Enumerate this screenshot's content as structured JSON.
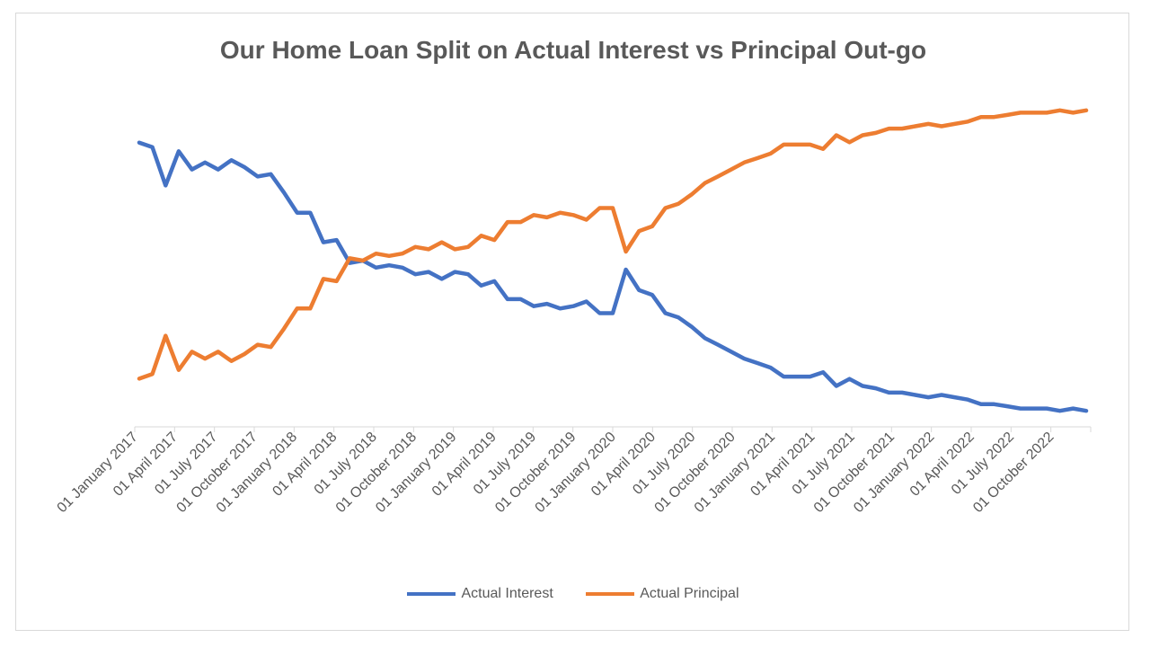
{
  "chart_data": {
    "type": "line",
    "title": "Our Home Loan Split on Actual Interest vs Principal Out-go",
    "xlabel": "",
    "ylabel": "",
    "x_tick_labels": [
      "01 January 2017",
      "01 April 2017",
      "01 July 2017",
      "01 October 2017",
      "01 January 2018",
      "01 April 2018",
      "01 July 2018",
      "01 October 2018",
      "01 January 2019",
      "01 April 2019",
      "01 July 2019",
      "01 October 2019",
      "01 January 2020",
      "01 April 2020",
      "01 July 2020",
      "01 October 2020",
      "01 January 2021",
      "01 April 2021",
      "01 July 2021",
      "01 October 2021",
      "01 January 2022",
      "01 April 2022",
      "01 July 2022",
      "01 October 2022"
    ],
    "ylim": [
      0,
      100
    ],
    "grid": false,
    "legend_position": "bottom",
    "series": [
      {
        "name": "Actual Interest",
        "color": "#4472C4",
        "values": [
          85.5,
          84.1,
          72.6,
          82.9,
          77.4,
          79.5,
          77.4,
          80.2,
          78.1,
          75.3,
          76.0,
          70.5,
          64.4,
          64.4,
          55.5,
          56.2,
          49.3,
          50.0,
          47.9,
          48.6,
          47.9,
          45.9,
          46.6,
          44.5,
          46.6,
          45.9,
          42.5,
          43.8,
          38.4,
          38.4,
          36.3,
          37.0,
          35.6,
          36.3,
          37.7,
          34.2,
          34.2,
          47.3,
          41.1,
          39.7,
          34.2,
          32.9,
          30.1,
          26.7,
          24.7,
          22.6,
          20.5,
          19.2,
          17.8,
          15.1,
          15.1,
          15.1,
          16.4,
          12.3,
          14.4,
          12.3,
          11.6,
          10.3,
          10.3,
          9.6,
          8.9,
          9.6,
          8.9,
          8.2,
          6.8,
          6.8,
          6.2,
          5.5,
          5.5,
          5.5,
          4.8,
          5.5,
          4.8
        ]
      },
      {
        "name": "Actual Principal",
        "color": "#ED7D31",
        "values": [
          14.5,
          15.9,
          27.4,
          17.1,
          22.6,
          20.5,
          22.6,
          19.8,
          21.9,
          24.7,
          24.0,
          29.5,
          35.6,
          35.6,
          44.5,
          43.8,
          50.7,
          50.0,
          52.1,
          51.4,
          52.1,
          54.1,
          53.4,
          55.5,
          53.4,
          54.1,
          57.5,
          56.2,
          61.6,
          61.6,
          63.7,
          63.0,
          64.4,
          63.7,
          62.3,
          65.8,
          65.8,
          52.7,
          58.9,
          60.3,
          65.8,
          67.1,
          69.9,
          73.3,
          75.3,
          77.4,
          79.5,
          80.8,
          82.2,
          84.9,
          84.9,
          84.9,
          83.6,
          87.7,
          85.6,
          87.7,
          88.4,
          89.7,
          89.7,
          90.4,
          91.1,
          90.4,
          91.1,
          91.8,
          93.2,
          93.2,
          93.8,
          94.5,
          94.5,
          94.5,
          95.2,
          94.5,
          95.2
        ]
      }
    ]
  }
}
